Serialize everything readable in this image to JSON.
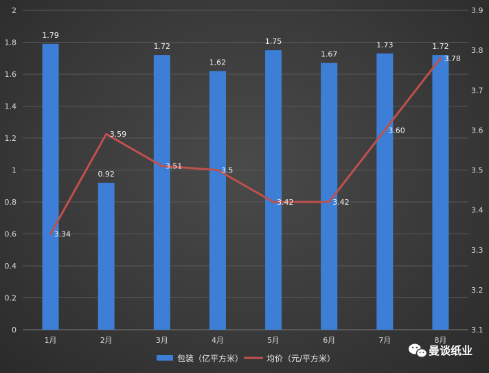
{
  "chart_data": {
    "type": "bar",
    "categories": [
      "1月",
      "2月",
      "3月",
      "4月",
      "5月",
      "6月",
      "7月",
      "8月"
    ],
    "series": [
      {
        "name": "包装（亿平方米）",
        "type": "bar",
        "axis": "left",
        "color": "#3d7fd6",
        "values": [
          1.79,
          0.92,
          1.72,
          1.62,
          1.75,
          1.67,
          1.73,
          1.72
        ],
        "labels": [
          "1.79",
          "0.92",
          "1.72",
          "1.62",
          "1.75",
          "1.67",
          "1.73",
          "1.72"
        ]
      },
      {
        "name": "均价（元/平方米）",
        "type": "line",
        "axis": "right",
        "color": "#c0504d",
        "values": [
          3.34,
          3.59,
          3.51,
          3.5,
          3.42,
          3.42,
          3.6,
          3.78
        ],
        "labels": [
          "3.34",
          "3.59",
          "3.51",
          "3.5",
          "3.42",
          "3.42",
          "3.60",
          "3.78"
        ]
      }
    ],
    "y_left": {
      "ylim": [
        0,
        2
      ],
      "ticks": [
        0,
        0.2,
        0.4,
        0.6,
        0.8,
        1,
        1.2,
        1.4,
        1.6,
        1.8,
        2
      ],
      "tick_labels": [
        "0",
        "0.2",
        "0.4",
        "0.6",
        "0.8",
        "1",
        "1.2",
        "1.4",
        "1.6",
        "1.8",
        "2"
      ]
    },
    "y_right": {
      "ylim": [
        3.1,
        3.9
      ],
      "ticks": [
        3.1,
        3.2,
        3.3,
        3.4,
        3.5,
        3.6,
        3.7,
        3.8,
        3.9
      ],
      "tick_labels": [
        "3.1",
        "3.2",
        "3.3",
        "3.4",
        "3.5",
        "3.6",
        "3.7",
        "3.8",
        "3.9"
      ]
    },
    "grid": true,
    "legend_position": "bottom",
    "background": "#3a3a3a"
  },
  "watermark": {
    "brand": "曼谈纸业",
    "icon": "wechat-icon"
  }
}
